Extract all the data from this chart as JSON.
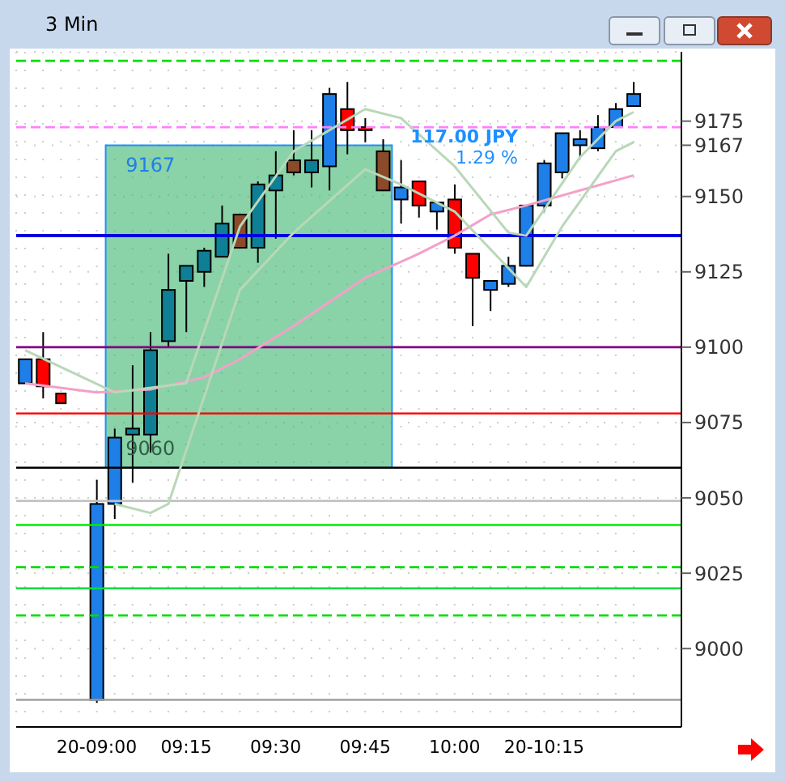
{
  "chart_data": {
    "type": "candlestick",
    "title": "3 Min",
    "categories": [
      null,
      null,
      null,
      null,
      "20-09:00",
      null,
      null,
      null,
      null,
      "09:15",
      null,
      null,
      null,
      null,
      "09:30",
      null,
      null,
      null,
      null,
      "09:45",
      null,
      null,
      null,
      null,
      "10:00",
      null,
      null,
      null,
      null,
      "20-10:15",
      null,
      null,
      null,
      null,
      null
    ],
    "ohlc": [
      [
        9088,
        9096,
        9088,
        9096
      ],
      [
        9096,
        9105,
        9083,
        9087
      ],
      null,
      null,
      [
        8983,
        9056,
        8982,
        9048
      ],
      [
        9048,
        9073,
        9043,
        9070
      ],
      [
        9071,
        9094,
        9055,
        9073
      ],
      [
        9071,
        9105,
        9065,
        9099
      ],
      [
        9102,
        9131,
        9100,
        9119
      ],
      [
        9122,
        9127,
        9105,
        9127
      ],
      [
        9125,
        9133,
        9120,
        9132
      ],
      [
        9130,
        9147,
        9130,
        9141
      ],
      [
        9144,
        9144,
        9133,
        9133
      ],
      [
        9133,
        9155,
        9128,
        9154
      ],
      [
        9152,
        9165,
        9136,
        9157
      ],
      [
        9162,
        9172,
        9157,
        9158
      ],
      [
        9158,
        9172,
        9153,
        9162
      ],
      [
        9160,
        9186,
        9152,
        9184
      ],
      [
        9179,
        9188,
        9164,
        9172
      ],
      [
        9173,
        9176,
        9168,
        9172
      ],
      [
        9165,
        9169,
        9152,
        9152
      ],
      [
        9149,
        9162,
        9141,
        9153
      ],
      [
        9155,
        9155,
        9143,
        9147
      ],
      [
        9145,
        9148,
        9139,
        9148
      ],
      [
        9149,
        9154,
        9131,
        9133
      ],
      [
        9131,
        9131,
        9107,
        9123
      ],
      [
        9119,
        9122,
        9112,
        9122
      ],
      [
        9121,
        9130,
        9120,
        9127
      ],
      [
        9127,
        9147,
        9127,
        9147
      ],
      [
        9147,
        9162,
        9145,
        9161
      ],
      [
        9158,
        9171,
        9156,
        9171
      ],
      [
        9167,
        9172,
        9163,
        9169
      ],
      [
        9166,
        9177,
        9165,
        9173
      ],
      [
        9173,
        9181,
        9173,
        9179
      ],
      [
        9180,
        9188,
        9180,
        9184
      ]
    ],
    "colors": [
      "#1e7fe8",
      "#ff0000",
      null,
      null,
      "#1e7fe8",
      "#1e7fe8",
      "#0f7f96",
      "#0f7f96",
      "#0f7f96",
      "#0f7f96",
      "#0f7f96",
      "#0f7f96",
      "#8b4a2a",
      "#0f7f96",
      "#0f7f96",
      "#8b4a2a",
      "#0f7f96",
      "#1e7fe8",
      "#ff0000",
      "#ff0000",
      "#8b4a2a",
      "#1e7fe8",
      "#ff0000",
      "#1e7fe8",
      "#ff0000",
      "#ff0000",
      "#1e7fe8",
      "#1e7fe8",
      "#1e7fe8",
      "#1e7fe8",
      "#1e7fe8",
      "#1e7fe8",
      "#1e7fe8",
      "#1e7fe8",
      "#1e7fe8"
    ],
    "series": [
      {
        "type": "line",
        "color": "#f4a0c8",
        "values": [
          9088,
          null,
          null,
          null,
          9085,
          null,
          null,
          9086,
          null,
          null,
          9090,
          null,
          9096,
          null,
          null,
          9107,
          null,
          null,
          null,
          9123,
          null,
          null,
          9131,
          null,
          9137,
          null,
          9144,
          null,
          9147,
          null,
          null,
          9152,
          null,
          null,
          9157
        ]
      },
      {
        "type": "line",
        "color": "#b8d8b8",
        "values": [
          9099,
          null,
          null,
          null,
          null,
          9085,
          null,
          null,
          null,
          9088,
          null,
          null,
          9140,
          null,
          null,
          9165,
          null,
          null,
          null,
          9179,
          null,
          9176,
          null,
          null,
          9160,
          null,
          null,
          9138,
          9137,
          null,
          null,
          9163,
          null,
          9175,
          9178
        ]
      },
      {
        "type": "line",
        "color": "#b8d8b8",
        "values": [
          null,
          null,
          null,
          null,
          null,
          9048,
          null,
          9045,
          9048,
          null,
          null,
          null,
          9119,
          null,
          null,
          9138,
          null,
          null,
          null,
          9159,
          null,
          9154,
          null,
          null,
          9145,
          null,
          null,
          null,
          9120,
          null,
          9140,
          null,
          null,
          9165,
          9168
        ]
      },
      {
        "type": "scatter",
        "color": "#ff0000",
        "marker": "square",
        "values": [
          null,
          null,
          9083,
          null,
          null,
          null,
          null,
          null,
          null,
          null,
          null,
          null,
          null,
          null,
          null,
          null,
          null,
          null,
          null,
          null,
          null,
          null,
          null,
          null,
          null,
          null,
          null,
          null,
          null,
          null,
          null,
          null,
          null,
          null,
          null
        ]
      }
    ],
    "ylim": [
      8974,
      9198
    ],
    "yticks": [
      9000,
      9025,
      9050,
      9075,
      9100,
      9125,
      9150,
      {
        "value": 9167,
        "label": "9167"
      },
      9175
    ],
    "grid": true,
    "ref_lines": [
      {
        "axis": "y",
        "value": 9195,
        "color": "#00dd00",
        "line_style": "dashed"
      },
      {
        "axis": "y",
        "value": 9173,
        "color": "#ff80ff",
        "line_style": "dashed"
      },
      {
        "axis": "y",
        "value": 9137,
        "color": "#0000e0",
        "line_style": "solid"
      },
      {
        "axis": "y",
        "value": 9100,
        "color": "#800080",
        "line_style": "solid"
      },
      {
        "axis": "y",
        "value": 9078,
        "color": "#ff0000",
        "line_style": "solid"
      },
      {
        "axis": "y",
        "value": 9060,
        "color": "#000000",
        "line_style": "solid"
      },
      {
        "axis": "y",
        "value": 9049,
        "color": "#c0c0c0",
        "line_style": "solid"
      },
      {
        "axis": "y",
        "value": 9041,
        "color": "#00ee00",
        "line_style": "solid"
      },
      {
        "axis": "y",
        "value": 9027,
        "color": "#00dd00",
        "line_style": "dashed"
      },
      {
        "axis": "y",
        "value": 9020,
        "color": "#00dd44",
        "line_style": "solid"
      },
      {
        "axis": "y",
        "value": 9011,
        "color": "#00dd00",
        "line_style": "dashed"
      },
      {
        "axis": "y",
        "value": 8983,
        "color": "#a0a0a0",
        "line_style": "solid"
      }
    ],
    "bands": [
      {
        "axis": "y",
        "from": 9060,
        "to": 9167,
        "color": "#3cb46e"
      }
    ],
    "annotations": [
      {
        "text": "9167",
        "y": 9167
      },
      {
        "text": "9060",
        "y": 9060
      },
      "117.00 JPY",
      "1.29 %"
    ]
  }
}
